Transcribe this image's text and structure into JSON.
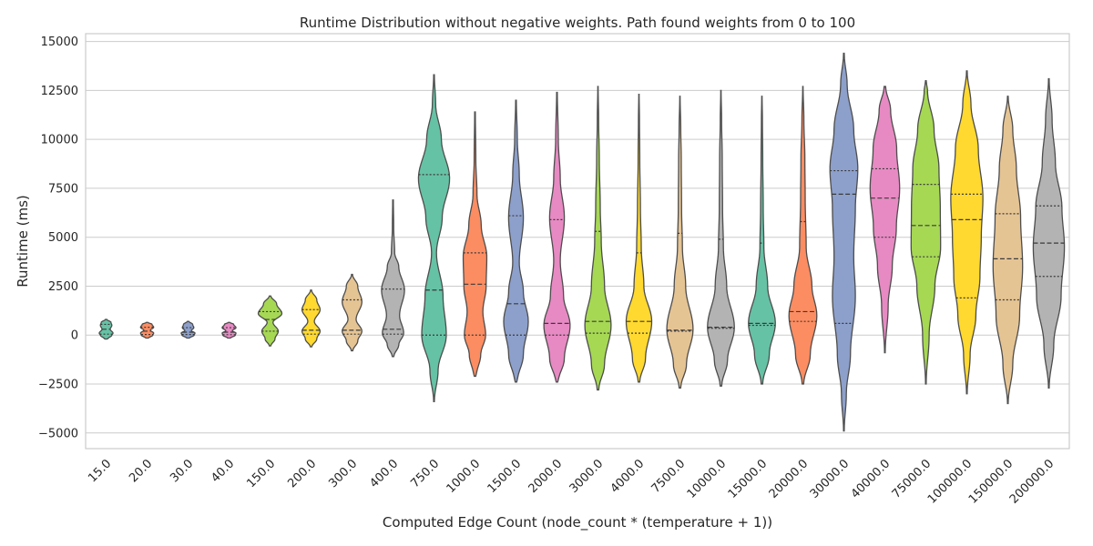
{
  "chart_data": {
    "type": "violin",
    "title": "Runtime Distribution without negative weights. Path found weights from 0 to 100",
    "xlabel": "Computed Edge Count (node_count * (temperature + 1))",
    "ylabel": "Runtime (ms)",
    "ylim": [
      -5800,
      15400
    ],
    "yticks": [
      -5000,
      -2500,
      0,
      2500,
      5000,
      7500,
      10000,
      12500,
      15000
    ],
    "ytick_labels": [
      "−5000",
      "−2500",
      "0",
      "2500",
      "5000",
      "7500",
      "10000",
      "12500",
      "15000"
    ],
    "grid": true,
    "inner": "quartile",
    "categories": [
      "15.0",
      "20.0",
      "30.0",
      "40.0",
      "150.0",
      "200.0",
      "300.0",
      "400.0",
      "750.0",
      "1000.0",
      "1500.0",
      "2000.0",
      "3000.0",
      "4000.0",
      "7500.0",
      "10000.0",
      "15000.0",
      "20000.0",
      "30000.0",
      "40000.0",
      "75000.0",
      "100000.0",
      "150000.0",
      "200000.0"
    ],
    "colors": [
      "#66c2a5",
      "#fc8d62",
      "#8da0cb",
      "#e78ac3",
      "#a6d854",
      "#ffd92f",
      "#e5c494",
      "#b3b3b3",
      "#66c2a5",
      "#fc8d62",
      "#8da0cb",
      "#e78ac3",
      "#a6d854",
      "#ffd92f",
      "#e5c494",
      "#b3b3b3",
      "#66c2a5",
      "#fc8d62",
      "#8da0cb",
      "#e78ac3",
      "#a6d854",
      "#ffd92f",
      "#e5c494",
      "#b3b3b3"
    ],
    "series": [
      {
        "min": -200,
        "max": 800,
        "q1": 50,
        "median": 300,
        "q3": 550,
        "shape": [
          [
            -200,
            0.1
          ],
          [
            0,
            0.35
          ],
          [
            100,
            0.42
          ],
          [
            300,
            0.25
          ],
          [
            500,
            0.35
          ],
          [
            650,
            0.3
          ],
          [
            800,
            0.05
          ]
        ]
      },
      {
        "min": -150,
        "max": 650,
        "q1": 30,
        "median": 200,
        "q3": 400,
        "shape": [
          [
            -150,
            0.1
          ],
          [
            0,
            0.35
          ],
          [
            100,
            0.4
          ],
          [
            250,
            0.2
          ],
          [
            400,
            0.4
          ],
          [
            550,
            0.3
          ],
          [
            650,
            0.05
          ]
        ]
      },
      {
        "min": -150,
        "max": 700,
        "q1": 30,
        "median": 150,
        "q3": 380,
        "shape": [
          [
            -150,
            0.1
          ],
          [
            0,
            0.37
          ],
          [
            100,
            0.42
          ],
          [
            230,
            0.2
          ],
          [
            380,
            0.35
          ],
          [
            550,
            0.28
          ],
          [
            700,
            0.05
          ]
        ]
      },
      {
        "min": -150,
        "max": 650,
        "q1": 20,
        "median": 150,
        "q3": 380,
        "shape": [
          [
            -150,
            0.1
          ],
          [
            0,
            0.38
          ],
          [
            100,
            0.42
          ],
          [
            220,
            0.2
          ],
          [
            380,
            0.42
          ],
          [
            550,
            0.28
          ],
          [
            650,
            0.05
          ]
        ]
      },
      {
        "min": -550,
        "max": 2000,
        "q1": 200,
        "median": 800,
        "q3": 1200,
        "shape": [
          [
            -550,
            0.05
          ],
          [
            -200,
            0.3
          ],
          [
            200,
            0.5
          ],
          [
            650,
            0.18
          ],
          [
            1100,
            0.72
          ],
          [
            1600,
            0.4
          ],
          [
            2000,
            0.05
          ]
        ]
      },
      {
        "min": -600,
        "max": 2300,
        "q1": 50,
        "median": 250,
        "q3": 1300,
        "shape": [
          [
            -600,
            0.05
          ],
          [
            -200,
            0.35
          ],
          [
            200,
            0.55
          ],
          [
            700,
            0.2
          ],
          [
            1300,
            0.55
          ],
          [
            1800,
            0.35
          ],
          [
            2300,
            0.03
          ]
        ]
      },
      {
        "min": -800,
        "max": 3100,
        "q1": 50,
        "median": 250,
        "q3": 1800,
        "shape": [
          [
            -800,
            0.05
          ],
          [
            -300,
            0.35
          ],
          [
            200,
            0.6
          ],
          [
            800,
            0.25
          ],
          [
            1700,
            0.6
          ],
          [
            2500,
            0.35
          ],
          [
            3100,
            0.03
          ]
        ]
      },
      {
        "min": -1100,
        "max": 6900,
        "q1": 50,
        "median": 300,
        "q3": 2350,
        "shape": [
          [
            -1100,
            0.05
          ],
          [
            -500,
            0.35
          ],
          [
            100,
            0.65
          ],
          [
            1000,
            0.4
          ],
          [
            2300,
            0.7
          ],
          [
            3500,
            0.35
          ],
          [
            4200,
            0.1
          ],
          [
            5500,
            0.04
          ],
          [
            6900,
            0.02
          ]
        ]
      },
      {
        "min": -3400,
        "max": 13300,
        "q1": 0,
        "median": 2300,
        "q3": 8200,
        "shape": [
          [
            -3400,
            0.02
          ],
          [
            -1800,
            0.25
          ],
          [
            0,
            0.75
          ],
          [
            2000,
            0.55
          ],
          [
            4200,
            0.15
          ],
          [
            6000,
            0.5
          ],
          [
            8000,
            0.95
          ],
          [
            10000,
            0.45
          ],
          [
            11800,
            0.1
          ],
          [
            13300,
            0.02
          ]
        ]
      },
      {
        "min": -2100,
        "max": 11400,
        "q1": 0,
        "median": 2600,
        "q3": 4200,
        "shape": [
          [
            -2100,
            0.08
          ],
          [
            -1000,
            0.35
          ],
          [
            0,
            0.65
          ],
          [
            1200,
            0.48
          ],
          [
            2500,
            0.68
          ],
          [
            4000,
            0.72
          ],
          [
            5600,
            0.38
          ],
          [
            7200,
            0.12
          ],
          [
            9000,
            0.05
          ],
          [
            11400,
            0.02
          ]
        ]
      },
      {
        "min": -2400,
        "max": 12000,
        "q1": 0,
        "median": 1600,
        "q3": 6100,
        "shape": [
          [
            -2400,
            0.08
          ],
          [
            -1000,
            0.45
          ],
          [
            700,
            0.75
          ],
          [
            2200,
            0.45
          ],
          [
            3700,
            0.2
          ],
          [
            6000,
            0.45
          ],
          [
            8200,
            0.2
          ],
          [
            10000,
            0.08
          ],
          [
            12000,
            0.02
          ]
        ]
      },
      {
        "min": -2400,
        "max": 12400,
        "q1": 0,
        "median": 600,
        "q3": 5900,
        "shape": [
          [
            -2400,
            0.08
          ],
          [
            -1200,
            0.45
          ],
          [
            500,
            0.8
          ],
          [
            2000,
            0.4
          ],
          [
            3800,
            0.2
          ],
          [
            6000,
            0.45
          ],
          [
            8000,
            0.2
          ],
          [
            10000,
            0.08
          ],
          [
            12400,
            0.02
          ]
        ]
      },
      {
        "min": -2800,
        "max": 12700,
        "q1": 100,
        "median": 700,
        "q3": 5300,
        "shape": [
          [
            -2800,
            0.05
          ],
          [
            -1500,
            0.4
          ],
          [
            500,
            0.8
          ],
          [
            2500,
            0.4
          ],
          [
            4800,
            0.2
          ],
          [
            6500,
            0.14
          ],
          [
            9000,
            0.08
          ],
          [
            11000,
            0.04
          ],
          [
            12700,
            0.01
          ]
        ]
      },
      {
        "min": -2400,
        "max": 12300,
        "q1": 100,
        "median": 700,
        "q3": 4200,
        "shape": [
          [
            -2400,
            0.05
          ],
          [
            -1200,
            0.4
          ],
          [
            700,
            0.78
          ],
          [
            2500,
            0.3
          ],
          [
            4500,
            0.14
          ],
          [
            6500,
            0.09
          ],
          [
            9000,
            0.05
          ],
          [
            11000,
            0.03
          ],
          [
            12300,
            0.01
          ]
        ]
      },
      {
        "min": -2700,
        "max": 12200,
        "q1": 200,
        "median": 250,
        "q3": 5200,
        "shape": [
          [
            -2700,
            0.05
          ],
          [
            -1500,
            0.4
          ],
          [
            300,
            0.8
          ],
          [
            2500,
            0.35
          ],
          [
            4500,
            0.15
          ],
          [
            6500,
            0.1
          ],
          [
            9000,
            0.08
          ],
          [
            10500,
            0.05
          ],
          [
            12200,
            0.01
          ]
        ]
      },
      {
        "min": -2600,
        "max": 12500,
        "q1": 350,
        "median": 400,
        "q3": 4900,
        "shape": [
          [
            -2600,
            0.05
          ],
          [
            -1300,
            0.4
          ],
          [
            400,
            0.82
          ],
          [
            2500,
            0.35
          ],
          [
            4500,
            0.15
          ],
          [
            6500,
            0.1
          ],
          [
            9000,
            0.08
          ],
          [
            11000,
            0.04
          ],
          [
            12500,
            0.01
          ]
        ]
      },
      {
        "min": -2500,
        "max": 12200,
        "q1": 500,
        "median": 600,
        "q3": 4700,
        "shape": [
          [
            -2500,
            0.05
          ],
          [
            -1000,
            0.45
          ],
          [
            600,
            0.82
          ],
          [
            2500,
            0.35
          ],
          [
            4500,
            0.12
          ],
          [
            6500,
            0.08
          ],
          [
            9000,
            0.05
          ],
          [
            11000,
            0.03
          ],
          [
            12200,
            0.01
          ]
        ]
      },
      {
        "min": -2500,
        "max": 12700,
        "q1": 700,
        "median": 1200,
        "q3": 5800,
        "shape": [
          [
            -2500,
            0.05
          ],
          [
            -1000,
            0.45
          ],
          [
            1000,
            0.85
          ],
          [
            2500,
            0.55
          ],
          [
            4500,
            0.2
          ],
          [
            7000,
            0.14
          ],
          [
            9000,
            0.12
          ],
          [
            11000,
            0.06
          ],
          [
            12700,
            0.01
          ]
        ]
      },
      {
        "min": -4900,
        "max": 14400,
        "q1": 600,
        "median": 7200,
        "q3": 8400,
        "shape": [
          [
            -4900,
            0.02
          ],
          [
            -3000,
            0.15
          ],
          [
            -1000,
            0.4
          ],
          [
            2000,
            0.7
          ],
          [
            4000,
            0.6
          ],
          [
            6500,
            0.7
          ],
          [
            8500,
            0.85
          ],
          [
            10500,
            0.6
          ],
          [
            12800,
            0.2
          ],
          [
            14400,
            0.02
          ]
        ]
      },
      {
        "min": -900,
        "max": 12700,
        "q1": 5000,
        "median": 7000,
        "q3": 8500,
        "shape": [
          [
            -900,
            0.02
          ],
          [
            1500,
            0.2
          ],
          [
            3500,
            0.45
          ],
          [
            5500,
            0.7
          ],
          [
            7500,
            0.9
          ],
          [
            9500,
            0.72
          ],
          [
            11500,
            0.35
          ],
          [
            12700,
            0.05
          ]
        ]
      },
      {
        "min": -2500,
        "max": 13000,
        "q1": 4000,
        "median": 5600,
        "q3": 7700,
        "shape": [
          [
            -2500,
            0.02
          ],
          [
            0,
            0.2
          ],
          [
            2500,
            0.55
          ],
          [
            4500,
            0.9
          ],
          [
            6500,
            0.88
          ],
          [
            8500,
            0.8
          ],
          [
            10500,
            0.5
          ],
          [
            12500,
            0.1
          ],
          [
            13000,
            0.02
          ]
        ]
      },
      {
        "min": -3000,
        "max": 13500,
        "q1": 1900,
        "median": 5900,
        "q3": 7200,
        "shape": [
          [
            -3000,
            0.02
          ],
          [
            -1000,
            0.2
          ],
          [
            1000,
            0.55
          ],
          [
            3000,
            0.8
          ],
          [
            5000,
            0.88
          ],
          [
            7000,
            0.98
          ],
          [
            9500,
            0.7
          ],
          [
            11800,
            0.25
          ],
          [
            13500,
            0.02
          ]
        ]
      },
      {
        "min": -3500,
        "max": 12200,
        "q1": 1800,
        "median": 3900,
        "q3": 6200,
        "shape": [
          [
            -3500,
            0.02
          ],
          [
            -1500,
            0.3
          ],
          [
            1000,
            0.72
          ],
          [
            3500,
            0.9
          ],
          [
            6000,
            0.78
          ],
          [
            8500,
            0.52
          ],
          [
            10500,
            0.3
          ],
          [
            12200,
            0.02
          ]
        ]
      },
      {
        "min": -2700,
        "max": 13100,
        "q1": 3000,
        "median": 4700,
        "q3": 6600,
        "shape": [
          [
            -2700,
            0.02
          ],
          [
            -500,
            0.3
          ],
          [
            2000,
            0.75
          ],
          [
            4500,
            0.95
          ],
          [
            6500,
            0.8
          ],
          [
            8800,
            0.4
          ],
          [
            11000,
            0.2
          ],
          [
            13100,
            0.02
          ]
        ]
      }
    ]
  }
}
